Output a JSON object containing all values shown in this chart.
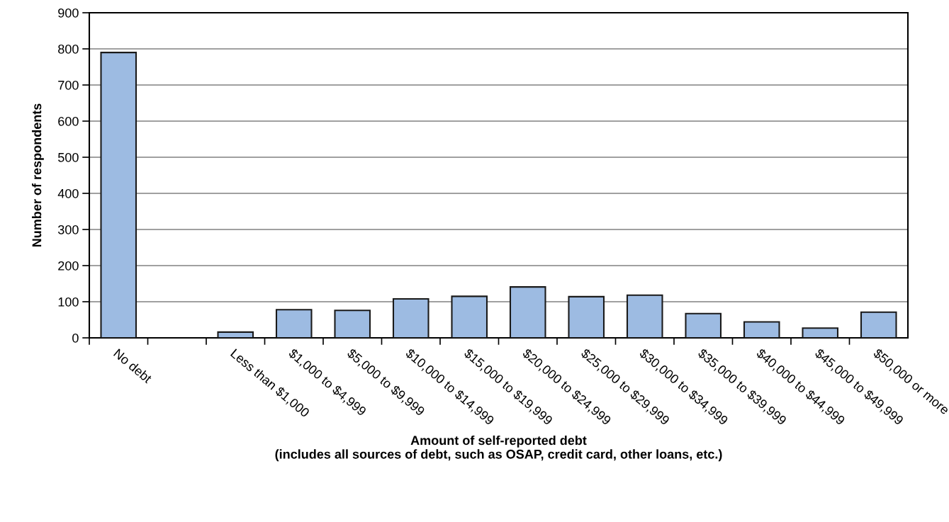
{
  "chart_data": {
    "type": "bar",
    "xlabel": "Amount of self-reported debt\n(includes all sources of debt, such as OSAP, credit card, other loans, etc.)",
    "ylabel": "Number of respondents",
    "categories": [
      "No debt",
      null,
      "Less than $1,000",
      "$1,000 to $4,999",
      "$5,000 to $9,999",
      "$10,000 to $14,999",
      "$15,000 to $19,999",
      "$20,000 to $24,999",
      "$25,000 to $29,999",
      "$30,000 to $34,999",
      "$35,000 to $39,999",
      "$40,000 to $44,999",
      "$45,000 to $49,999",
      "$50,000 or more"
    ],
    "values": [
      790,
      null,
      16,
      78,
      76,
      108,
      115,
      141,
      114,
      118,
      67,
      44,
      27,
      71
    ],
    "color": "#9dbbe2",
    "ylim": [
      0,
      900
    ],
    "yticks": [
      0,
      100,
      200,
      300,
      400,
      500,
      600,
      700,
      800,
      900
    ],
    "grid": "y",
    "legend": false
  }
}
